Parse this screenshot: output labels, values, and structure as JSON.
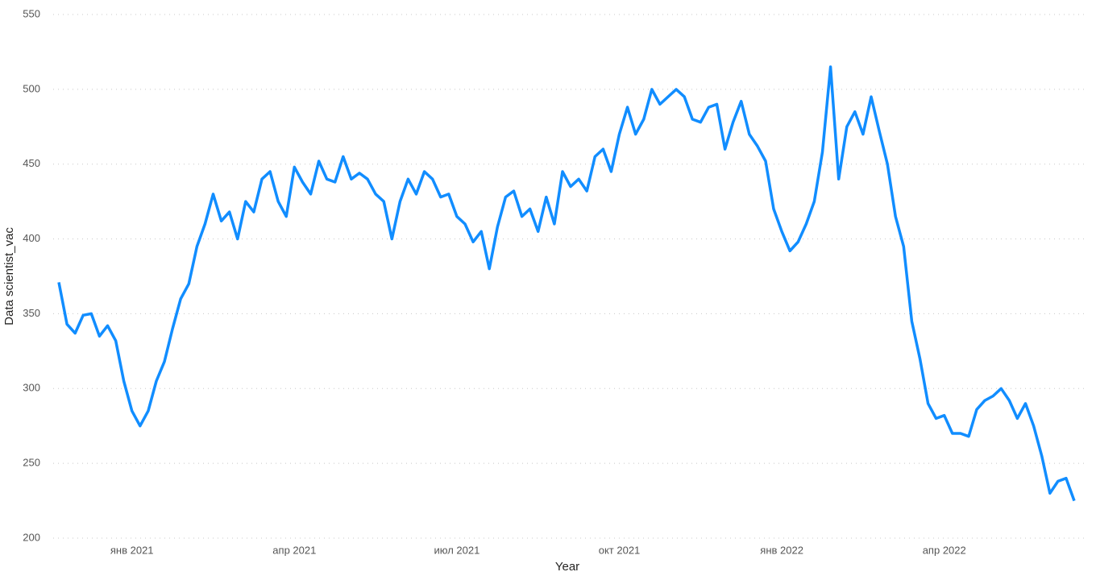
{
  "chart_data": {
    "type": "line",
    "ylabel": "Data scientist_vac",
    "xlabel": "Year",
    "ylim": [
      200,
      550
    ],
    "yticks": [
      200,
      250,
      300,
      350,
      400,
      450,
      500,
      550
    ],
    "xlim": [
      0,
      125
    ],
    "xticks": [
      {
        "value": 9,
        "label": "янв 2021"
      },
      {
        "value": 29,
        "label": "апр 2021"
      },
      {
        "value": 49,
        "label": "июл 2021"
      },
      {
        "value": 69,
        "label": "окт 2021"
      },
      {
        "value": 89,
        "label": "янв 2022"
      },
      {
        "value": 109,
        "label": "апр 2022"
      }
    ],
    "grid": true,
    "color": "#118dff",
    "values": [
      371,
      343,
      337,
      349,
      350,
      335,
      342,
      332,
      305,
      285,
      275,
      285,
      305,
      318,
      340,
      360,
      370,
      395,
      410,
      430,
      412,
      418,
      400,
      425,
      418,
      440,
      445,
      425,
      415,
      448,
      438,
      430,
      452,
      440,
      438,
      455,
      440,
      444,
      440,
      430,
      425,
      400,
      425,
      440,
      430,
      445,
      440,
      428,
      430,
      415,
      410,
      398,
      405,
      380,
      408,
      428,
      432,
      415,
      420,
      405,
      428,
      410,
      445,
      435,
      440,
      432,
      455,
      460,
      445,
      470,
      488,
      470,
      480,
      500,
      490,
      495,
      500,
      495,
      480,
      478,
      488,
      490,
      460,
      478,
      492,
      470,
      462,
      452,
      420,
      405,
      392,
      398,
      410,
      425,
      458,
      515,
      440,
      475,
      485,
      470,
      495,
      472,
      450,
      415,
      395,
      345,
      320,
      290,
      280,
      282,
      270,
      270,
      268,
      286,
      292,
      295,
      300,
      292,
      280,
      290,
      275,
      255,
      230,
      238,
      240,
      225
    ]
  }
}
